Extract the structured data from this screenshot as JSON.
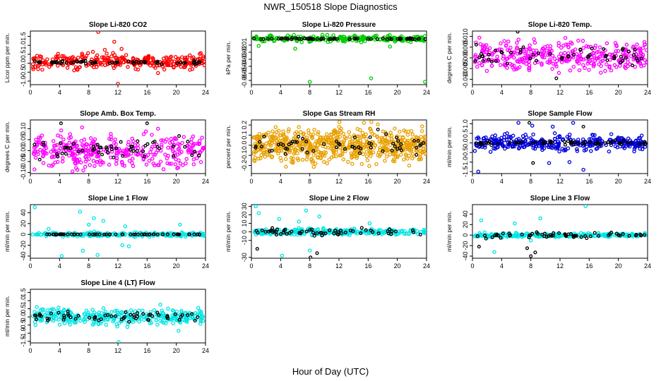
{
  "figure": {
    "title": "NWR_150518  Slope Diagnostics",
    "xlabel": "Hour of Day (UTC)"
  },
  "chart_data": [
    {
      "type": "scatter",
      "title": "Slope Li-820 CO2",
      "ylabel": "Licor ppm per min.",
      "xlim": [
        0,
        24
      ],
      "xticks": [
        "0",
        "4",
        "8",
        "12",
        "16",
        "20",
        "24"
      ],
      "ylim": [
        -1.2,
        1.8
      ],
      "yticks": [
        -1.0,
        -0.5,
        0.0,
        0.5,
        1.0,
        1.5
      ],
      "yticklabels": [
        "-1.0",
        "-0.5",
        "0.0",
        "0.5",
        "1.0",
        "1.5"
      ],
      "series": [
        {
          "color": "#ff0000",
          "n": 300,
          "center": 0.1,
          "spread": 0.45,
          "outliers": [
            [
              9.3,
              1.75
            ],
            [
              11.5,
              1.2
            ],
            [
              12.0,
              -1.15
            ],
            [
              10.2,
              0.75
            ],
            [
              12.5,
              0.8
            ],
            [
              17.5,
              -0.55
            ],
            [
              6.0,
              -0.4
            ]
          ]
        },
        {
          "color": "#000000",
          "n": 60,
          "center": 0.05,
          "spread": 0.1,
          "outliers": []
        }
      ]
    },
    {
      "type": "scatter",
      "title": "Slope Li-820 Pressure",
      "ylabel": "kPa per min.",
      "xlim": [
        0,
        24
      ],
      "xticks": [
        "0",
        "4",
        "8",
        "12",
        "16",
        "20",
        "24"
      ],
      "ylim": [
        -0.066,
        0.01
      ],
      "yticks": [
        -0.06,
        -0.05,
        -0.04,
        -0.03,
        -0.02,
        -0.01
      ],
      "yticklabels": [
        "-0.06",
        "-0.05",
        "-0.04",
        "-0.03",
        "-0.02",
        "-0.01"
      ],
      "series": [
        {
          "color": "#00cc00",
          "n": 240,
          "center": -0.001,
          "spread": 0.005,
          "outliers": [
            [
              8.0,
              -0.062
            ],
            [
              16.4,
              -0.057
            ],
            [
              23.8,
              -0.062
            ],
            [
              6.0,
              -0.015
            ],
            [
              19.0,
              -0.012
            ],
            [
              1.0,
              -0.011
            ]
          ]
        },
        {
          "color": "#000000",
          "n": 70,
          "center": -0.001,
          "spread": 0.001,
          "outliers": []
        }
      ]
    },
    {
      "type": "scatter",
      "title": "Slope Li-820 Temp.",
      "ylabel": "degrees C per min.",
      "xlim": [
        0,
        24
      ],
      "xticks": [
        "0",
        "4",
        "8",
        "12",
        "16",
        "20",
        "24"
      ],
      "ylim": [
        -0.0125,
        0.0125
      ],
      "yticks": [
        -0.01,
        -0.005,
        0.0,
        0.005,
        0.01
      ],
      "yticklabels": [
        "-0.010",
        "-0.005",
        "0.000",
        "0.005",
        "0.010"
      ],
      "series": [
        {
          "color": "#ff00ff",
          "n": 360,
          "center": 0.001,
          "spread": 0.0075,
          "outliers": []
        },
        {
          "color": "#000000",
          "n": 55,
          "center": 0.001,
          "spread": 0.005,
          "outliers": [
            [
              6.2,
              0.0122
            ],
            [
              11.5,
              -0.0095
            ]
          ]
        }
      ]
    },
    {
      "type": "scatter",
      "title": "Slope Amb. Box Temp.",
      "ylabel": "degrees C per min.",
      "xlim": [
        0,
        24
      ],
      "xticks": [
        "0",
        "4",
        "8",
        "12",
        "16",
        "20",
        "24"
      ],
      "ylim": [
        -0.105,
        0.14
      ],
      "yticks": [
        -0.1,
        -0.05,
        0.0,
        0.05,
        0.1
      ],
      "yticklabels": [
        "-0.10",
        "-0.05",
        "0.00",
        "0.05",
        "0.10"
      ],
      "series": [
        {
          "color": "#ff00ff",
          "n": 360,
          "center": 0.0,
          "spread": 0.08,
          "outliers": []
        },
        {
          "color": "#000000",
          "n": 55,
          "center": 0.0,
          "spread": 0.06,
          "outliers": [
            [
              4.2,
              0.125
            ],
            [
              16.0,
              0.125
            ]
          ]
        }
      ]
    },
    {
      "type": "scatter",
      "title": "Slope Gas Stream RH",
      "ylabel": "percent per min.",
      "xlim": [
        0,
        24
      ],
      "xticks": [
        "0",
        "4",
        "8",
        "12",
        "16",
        "20",
        "24"
      ],
      "ylim": [
        -0.28,
        0.25
      ],
      "yticks": [
        -0.2,
        -0.1,
        0.0,
        0.1,
        0.2
      ],
      "yticklabels": [
        "-0.2",
        "-0.1",
        "0.0",
        "0.1",
        "0.2"
      ],
      "series": [
        {
          "color": "#e8a000",
          "n": 650,
          "center": 0.0,
          "spread": 0.18,
          "outliers": []
        },
        {
          "color": "#000000",
          "n": 60,
          "center": 0.0,
          "spread": 0.12,
          "outliers": []
        }
      ]
    },
    {
      "type": "scatter",
      "title": "Slope Sample Flow",
      "ylabel": "ml/min per min.",
      "xlim": [
        0,
        24
      ],
      "xticks": [
        "0",
        "4",
        "8",
        "12",
        "16",
        "20",
        "24"
      ],
      "ylim": [
        -1.6,
        1.2
      ],
      "yticks": [
        -1.5,
        -1.0,
        -0.5,
        0.0,
        0.5,
        1.0
      ],
      "yticklabels": [
        "-1.5",
        "-1.0",
        "-0.5",
        "0.0",
        "0.5",
        "1.0"
      ],
      "series": [
        {
          "color": "#0000dd",
          "n": 340,
          "center": 0.0,
          "spread": 0.45,
          "outliers": [
            [
              6.3,
              1.05
            ],
            [
              8.2,
              0.9
            ],
            [
              10.5,
              -1.05
            ],
            [
              13.3,
              -1.0
            ],
            [
              15.2,
              -1.4
            ],
            [
              0.8,
              -1.5
            ],
            [
              13.8,
              1.05
            ],
            [
              11.0,
              0.85
            ]
          ]
        },
        {
          "color": "#000000",
          "n": 60,
          "center": 0.0,
          "spread": 0.12,
          "outliers": [
            [
              7.8,
              1.05
            ],
            [
              8.3,
              -1.05
            ],
            [
              15.2,
              0.85
            ]
          ]
        }
      ]
    },
    {
      "type": "scatter",
      "title": "Slope Line 1 Flow",
      "ylabel": "ml/min per min.",
      "xlim": [
        0,
        24
      ],
      "xticks": [
        "0",
        "4",
        "8",
        "12",
        "16",
        "20",
        "24"
      ],
      "ylim": [
        -44,
        55
      ],
      "yticks": [
        -40,
        -20,
        0,
        20,
        40
      ],
      "yticklabels": [
        "-40",
        "-20",
        "0",
        "20",
        "40"
      ],
      "series": [
        {
          "color": "#00e5e5",
          "n": 240,
          "center": 0.0,
          "spread": 4.0,
          "outliers": [
            [
              0.6,
              50
            ],
            [
              4.3,
              -40
            ],
            [
              6.8,
              42
            ],
            [
              7.2,
              -30
            ],
            [
              8.7,
              30
            ],
            [
              9.2,
              -38
            ],
            [
              10.0,
              25
            ],
            [
              12.6,
              -20
            ],
            [
              13.5,
              -22
            ],
            [
              20.5,
              18
            ],
            [
              2.5,
              10
            ],
            [
              8.0,
              18
            ],
            [
              13.0,
              15
            ]
          ]
        },
        {
          "color": "#000000",
          "n": 60,
          "center": 0.0,
          "spread": 0.2,
          "outliers": []
        }
      ]
    },
    {
      "type": "scatter",
      "title": "Slope Line 2 Flow",
      "ylabel": "ml/min per min.",
      "xlim": [
        0,
        24
      ],
      "xticks": [
        "0",
        "4",
        "8",
        "12",
        "16",
        "20",
        "24"
      ],
      "ylim": [
        -31,
        32
      ],
      "yticks": [
        -30,
        -10,
        0,
        10,
        20,
        30
      ],
      "yticklabels": [
        "-30",
        "-10",
        "0",
        "10",
        "20",
        "30"
      ],
      "series": [
        {
          "color": "#00e5e5",
          "n": 260,
          "center": 0.0,
          "spread": 4.0,
          "outliers": [
            [
              0.6,
              30
            ],
            [
              1.0,
              22
            ],
            [
              4.2,
              -28
            ],
            [
              7.5,
              25
            ],
            [
              8.0,
              -22
            ],
            [
              9.3,
              18
            ],
            [
              3.8,
              15
            ],
            [
              16.2,
              10
            ],
            [
              6.5,
              12
            ]
          ]
        },
        {
          "color": "#000000",
          "n": 60,
          "center": 0.0,
          "spread": 5.0,
          "outliers": [
            [
              0.8,
              -20
            ],
            [
              8.1,
              -30
            ],
            [
              9.0,
              -25
            ]
          ]
        }
      ]
    },
    {
      "type": "scatter",
      "title": "Slope Line 3 Flow",
      "ylabel": "ml/min per min.",
      "xlim": [
        0,
        24
      ],
      "xticks": [
        "0",
        "4",
        "8",
        "12",
        "16",
        "20",
        "24"
      ],
      "ylim": [
        -44,
        58
      ],
      "yticks": [
        -40,
        -20,
        0,
        20,
        40
      ],
      "yticklabels": [
        "-40",
        "-20",
        "0",
        "20",
        "40"
      ],
      "series": [
        {
          "color": "#00e5e5",
          "n": 250,
          "center": 0.0,
          "spread": 4.0,
          "outliers": [
            [
              1.2,
              28
            ],
            [
              3.0,
              -32
            ],
            [
              5.8,
              22
            ],
            [
              9.3,
              32
            ],
            [
              15.5,
              55
            ],
            [
              8.0,
              -10
            ]
          ]
        },
        {
          "color": "#000000",
          "n": 60,
          "center": 0.0,
          "spread": 6.0,
          "outliers": [
            [
              8.0,
              -40
            ],
            [
              8.6,
              -33
            ],
            [
              7.5,
              -25
            ],
            [
              0.9,
              -22
            ]
          ]
        }
      ]
    },
    {
      "type": "scatter",
      "title": "Slope Line 4 (LT) Flow",
      "ylabel": "ml/min per min.",
      "xlim": [
        0,
        24
      ],
      "xticks": [
        "0",
        "4",
        "8",
        "12",
        "16",
        "20",
        "24"
      ],
      "ylim": [
        -1.6,
        1.7
      ],
      "yticks": [
        -1.5,
        -1.0,
        -0.5,
        0.0,
        0.5,
        1.0,
        1.5
      ],
      "yticklabels": [
        "-1.5",
        "-1.0",
        "-0.5",
        "0.0",
        "0.5",
        "1.0",
        "1.5"
      ],
      "series": [
        {
          "color": "#00e5e5",
          "n": 320,
          "center": 0.0,
          "spread": 0.55,
          "outliers": [
            [
              12.1,
              -1.55
            ],
            [
              20.3,
              -0.85
            ],
            [
              23.0,
              0.55
            ],
            [
              0.7,
              -0.5
            ]
          ]
        },
        {
          "color": "#000000",
          "n": 60,
          "center": 0.0,
          "spread": 0.35,
          "outliers": []
        }
      ]
    }
  ]
}
